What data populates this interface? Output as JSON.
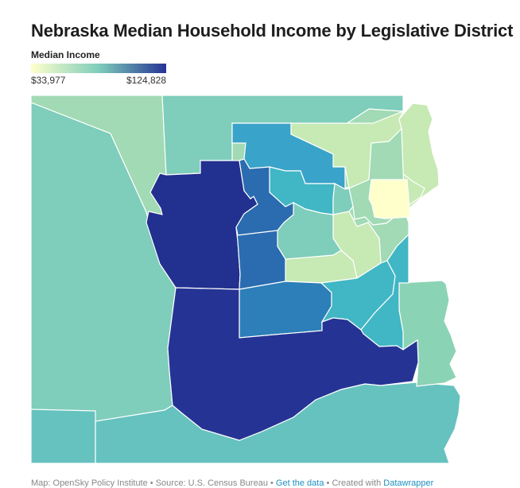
{
  "title": "Nebraska Median Household Income by Legislative District",
  "legend": {
    "title": "Median Income",
    "min_label": "$33,977",
    "max_label": "$124,828",
    "min_color": "#ffffcc",
    "mid_color": "#7fcdbb",
    "max_color": "#253494"
  },
  "footer": {
    "map_credit": "Map: OpenSky Policy Institute",
    "source": "Source: U.S. Census Bureau",
    "get_data_label": "Get the data",
    "created_with_prefix": "Created with",
    "created_with_link": "Datawrapper",
    "separator": " • "
  },
  "colors": {
    "background": "#ffffff",
    "water": "#ffffff",
    "district_lightest": "#ffffcc",
    "district_pale": "#c7e9b4",
    "district_light": "#a1dab4",
    "district_mint": "#8bd3b5",
    "district_teal_light": "#7fcdbb",
    "district_teal": "#66c2bf",
    "district_teal_mid": "#41b6c4",
    "district_blue_light": "#3aa3c9",
    "district_blue": "#2c7fb8",
    "district_blue_mid": "#2b6cb0",
    "district_navy": "#253494",
    "district_navy_dark": "#22308f"
  }
}
